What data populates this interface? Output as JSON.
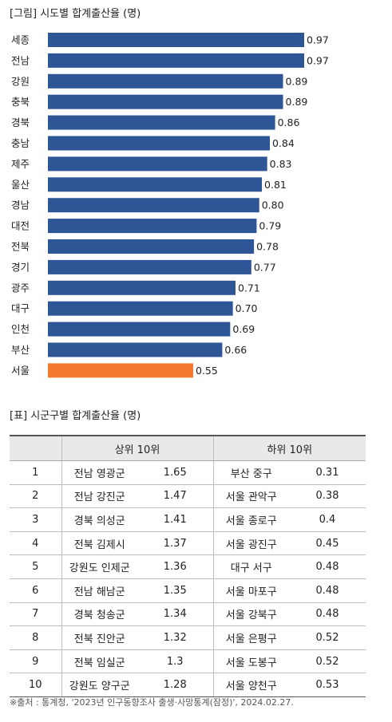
{
  "figure_title": "[그림] 시도별 합계출산율 (명)",
  "chart_data": {
    "type": "bar",
    "orientation": "horizontal",
    "title": "[그림] 시도별 합계출산율 (명)",
    "categories": [
      "세종",
      "전남",
      "강원",
      "충북",
      "경북",
      "충남",
      "제주",
      "울산",
      "경남",
      "대전",
      "전북",
      "경기",
      "광주",
      "대구",
      "인천",
      "부산",
      "서울"
    ],
    "values": [
      0.97,
      0.97,
      0.89,
      0.89,
      0.86,
      0.84,
      0.83,
      0.81,
      0.8,
      0.79,
      0.78,
      0.77,
      0.71,
      0.7,
      0.69,
      0.66,
      0.55
    ],
    "value_labels": [
      "0.97",
      "0.97",
      "0.89",
      "0.89",
      "0.86",
      "0.84",
      "0.83",
      "0.81",
      "0.80",
      "0.79",
      "0.78",
      "0.77",
      "0.71",
      "0.70",
      "0.69",
      "0.66",
      "0.55"
    ],
    "xlim": [
      0,
      0.97
    ],
    "bar_color": "#2e5596",
    "highlight_color": "#f47a30",
    "highlight_category": "서울"
  },
  "table": {
    "title": "[표] 시군구별 합계출산율 (명)",
    "header_top": "상위 10위",
    "header_bottom": "하위 10위",
    "rows": [
      {
        "rank": "1",
        "top_region": "전남 영광군",
        "top_value": "1.65",
        "bottom_region": "부산 중구",
        "bottom_value": "0.31"
      },
      {
        "rank": "2",
        "top_region": "전남 강진군",
        "top_value": "1.47",
        "bottom_region": "서울 관악구",
        "bottom_value": "0.38"
      },
      {
        "rank": "3",
        "top_region": "경북 의성군",
        "top_value": "1.41",
        "bottom_region": "서울 종로구",
        "bottom_value": "0.4"
      },
      {
        "rank": "4",
        "top_region": "전북 김제시",
        "top_value": "1.37",
        "bottom_region": "서울 광진구",
        "bottom_value": "0.45"
      },
      {
        "rank": "5",
        "top_region": "강원도 인제군",
        "top_value": "1.36",
        "bottom_region": "대구 서구",
        "bottom_value": "0.48"
      },
      {
        "rank": "6",
        "top_region": "전남 해남군",
        "top_value": "1.35",
        "bottom_region": "서울 마포구",
        "bottom_value": "0.48"
      },
      {
        "rank": "7",
        "top_region": "경북 청송군",
        "top_value": "1.34",
        "bottom_region": "서울 강북구",
        "bottom_value": "0.48"
      },
      {
        "rank": "8",
        "top_region": "전북 진안군",
        "top_value": "1.32",
        "bottom_region": "서울 은평구",
        "bottom_value": "0.52"
      },
      {
        "rank": "9",
        "top_region": "전북 임실군",
        "top_value": "1.3",
        "bottom_region": "서울 도봉구",
        "bottom_value": "0.52"
      },
      {
        "rank": "10",
        "top_region": "강원도 양구군",
        "top_value": "1.28",
        "bottom_region": "서울 양천구",
        "bottom_value": "0.53"
      }
    ]
  },
  "source": "※출처 : 통계청, '2023년 인구동향조사 출생·사망통계(잠정)', 2024.02.27."
}
